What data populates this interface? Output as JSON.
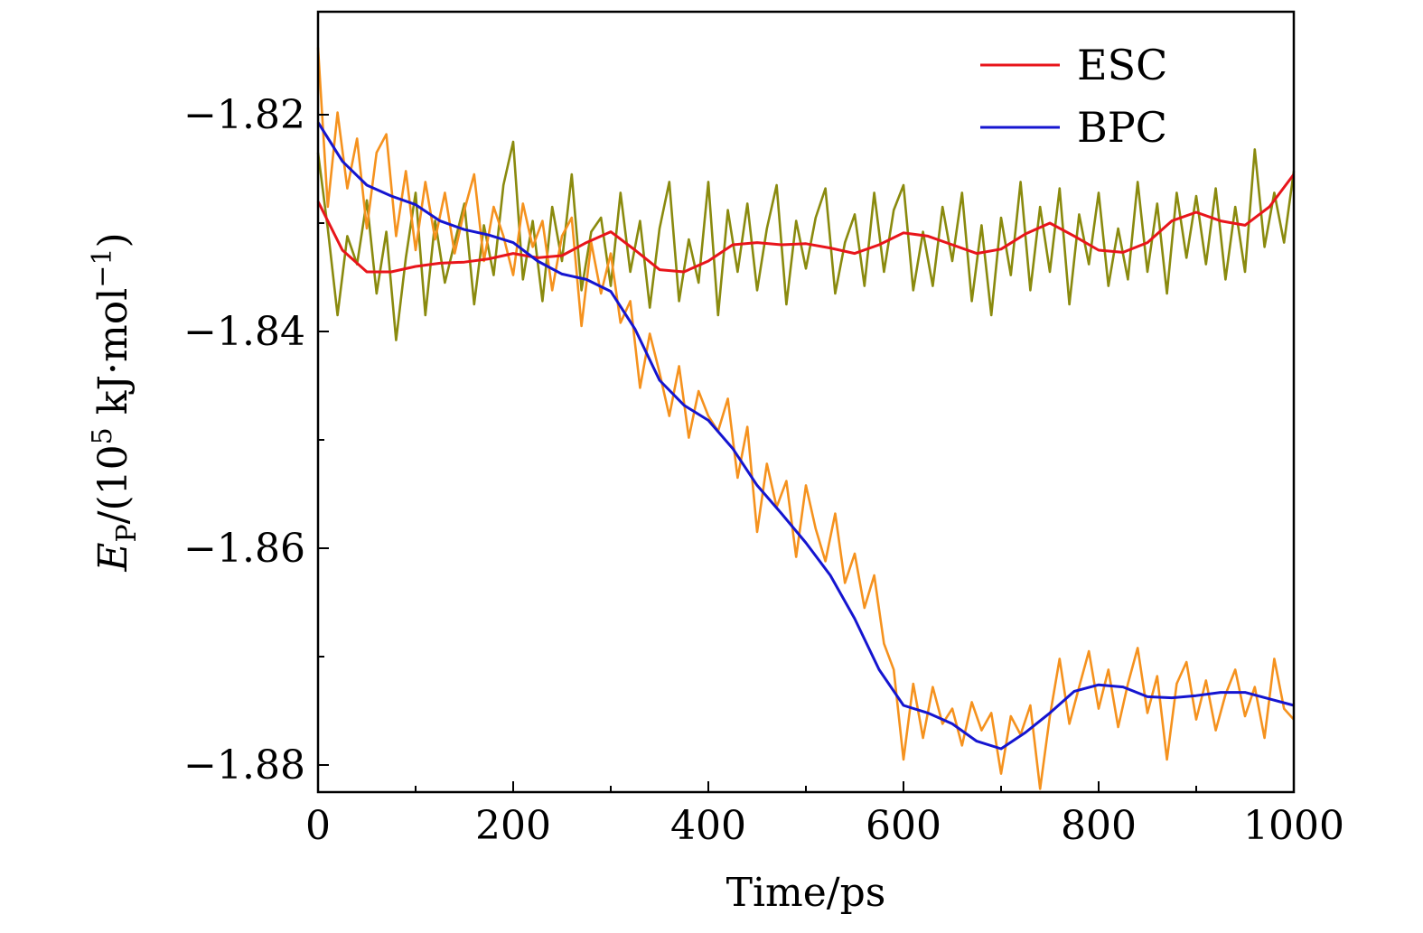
{
  "chart_data": {
    "type": "line",
    "title": "",
    "xlabel": "Time/ps",
    "ylabel": {
      "symbol": "E",
      "subscript": "P",
      "prefix": "/(10",
      "exponent": "5",
      "unit": " kJ·mol",
      "unit_exponent": "−1",
      "suffix": ")"
    },
    "xlim": [
      0,
      1000
    ],
    "ylim": [
      -1.8825,
      -1.8105
    ],
    "x_ticks": [
      0,
      200,
      400,
      600,
      800,
      1000
    ],
    "x_tick_labels": [
      "0",
      "200",
      "400",
      "600",
      "800",
      "1000"
    ],
    "y_ticks": [
      -1.82,
      -1.84,
      -1.86,
      -1.88
    ],
    "y_tick_labels": [
      "−1.82",
      "−1.84",
      "−1.86",
      "−1.88"
    ],
    "legend": {
      "position": "top-right",
      "entries": [
        {
          "label": "ESC",
          "color": "#e8151b"
        },
        {
          "label": "BPC",
          "color": "#1515d0"
        }
      ]
    },
    "series": [
      {
        "name": "ESC",
        "role": "smoothed",
        "color": "#e8151b",
        "x": [
          0,
          25,
          50,
          75,
          100,
          125,
          150,
          175,
          200,
          225,
          250,
          275,
          300,
          325,
          350,
          375,
          400,
          425,
          450,
          475,
          500,
          525,
          550,
          575,
          600,
          625,
          650,
          675,
          700,
          725,
          750,
          775,
          800,
          825,
          850,
          875,
          900,
          925,
          950,
          975,
          1000
        ],
        "values": [
          -1.828,
          -1.8325,
          -1.8345,
          -1.8345,
          -1.834,
          -1.8337,
          -1.8336,
          -1.8333,
          -1.8328,
          -1.8332,
          -1.833,
          -1.8318,
          -1.8308,
          -1.8325,
          -1.8343,
          -1.8345,
          -1.8335,
          -1.832,
          -1.8318,
          -1.832,
          -1.8319,
          -1.8323,
          -1.8328,
          -1.832,
          -1.8309,
          -1.8312,
          -1.832,
          -1.8328,
          -1.8324,
          -1.831,
          -1.83,
          -1.8312,
          -1.8325,
          -1.8327,
          -1.8318,
          -1.8298,
          -1.829,
          -1.8298,
          -1.8302,
          -1.8285,
          -1.8255
        ]
      },
      {
        "name": "BPC",
        "role": "smoothed",
        "color": "#1515d0",
        "x": [
          0,
          25,
          50,
          75,
          100,
          125,
          150,
          175,
          200,
          225,
          250,
          275,
          300,
          325,
          350,
          375,
          400,
          425,
          450,
          475,
          500,
          525,
          550,
          575,
          600,
          625,
          650,
          675,
          700,
          725,
          750,
          775,
          800,
          825,
          850,
          875,
          900,
          925,
          950,
          975,
          1000
        ],
        "values": [
          -1.8207,
          -1.8243,
          -1.8265,
          -1.8275,
          -1.8283,
          -1.8298,
          -1.8306,
          -1.8311,
          -1.8318,
          -1.8335,
          -1.8347,
          -1.8352,
          -1.8363,
          -1.8398,
          -1.8445,
          -1.8468,
          -1.8482,
          -1.8508,
          -1.8542,
          -1.8568,
          -1.8595,
          -1.8625,
          -1.8665,
          -1.8712,
          -1.8745,
          -1.8752,
          -1.8762,
          -1.8778,
          -1.8785,
          -1.877,
          -1.8752,
          -1.8732,
          -1.8726,
          -1.8728,
          -1.8737,
          -1.8738,
          -1.8736,
          -1.8733,
          -1.8733,
          -1.8739,
          -1.8745
        ]
      },
      {
        "name": "ESC raw",
        "role": "raw",
        "color": "#8a8a0e",
        "x": [
          0,
          10,
          20,
          30,
          40,
          50,
          60,
          70,
          80,
          90,
          100,
          110,
          120,
          130,
          140,
          150,
          160,
          170,
          180,
          190,
          200,
          210,
          220,
          230,
          240,
          250,
          260,
          270,
          280,
          290,
          300,
          310,
          320,
          330,
          340,
          350,
          360,
          370,
          380,
          390,
          400,
          410,
          420,
          430,
          440,
          450,
          460,
          470,
          480,
          490,
          500,
          510,
          520,
          530,
          540,
          550,
          560,
          570,
          580,
          590,
          600,
          610,
          620,
          630,
          640,
          650,
          660,
          670,
          680,
          690,
          700,
          710,
          720,
          730,
          740,
          750,
          760,
          770,
          780,
          790,
          800,
          810,
          820,
          830,
          840,
          850,
          860,
          870,
          880,
          890,
          900,
          910,
          920,
          930,
          940,
          950,
          960,
          970,
          980,
          990,
          1000
        ],
        "values": [
          -1.8235,
          -1.8305,
          -1.8385,
          -1.8312,
          -1.8338,
          -1.8279,
          -1.8365,
          -1.8308,
          -1.8408,
          -1.8332,
          -1.8272,
          -1.8385,
          -1.8298,
          -1.8355,
          -1.8318,
          -1.8282,
          -1.8375,
          -1.8302,
          -1.8348,
          -1.8265,
          -1.8225,
          -1.8352,
          -1.8298,
          -1.8372,
          -1.8285,
          -1.8335,
          -1.8255,
          -1.8362,
          -1.8308,
          -1.8295,
          -1.8358,
          -1.8272,
          -1.8345,
          -1.8298,
          -1.8378,
          -1.8305,
          -1.8262,
          -1.8372,
          -1.8315,
          -1.8355,
          -1.8262,
          -1.8385,
          -1.8288,
          -1.8345,
          -1.8282,
          -1.8362,
          -1.8305,
          -1.8265,
          -1.8375,
          -1.8298,
          -1.8342,
          -1.8295,
          -1.8268,
          -1.8365,
          -1.8318,
          -1.8292,
          -1.8358,
          -1.8272,
          -1.8345,
          -1.8288,
          -1.8265,
          -1.8362,
          -1.8308,
          -1.8358,
          -1.8285,
          -1.8335,
          -1.8272,
          -1.8372,
          -1.8302,
          -1.8385,
          -1.8295,
          -1.8348,
          -1.8262,
          -1.8362,
          -1.8285,
          -1.8345,
          -1.8268,
          -1.8375,
          -1.8292,
          -1.8338,
          -1.8272,
          -1.8358,
          -1.8305,
          -1.8352,
          -1.8262,
          -1.8345,
          -1.8282,
          -1.8365,
          -1.8272,
          -1.8332,
          -1.8275,
          -1.8338,
          -1.8268,
          -1.8352,
          -1.8285,
          -1.8345,
          -1.8232,
          -1.8322,
          -1.8272,
          -1.8318,
          -1.8252
        ]
      },
      {
        "name": "BPC raw",
        "role": "raw",
        "color": "#f5921e",
        "x": [
          0,
          10,
          20,
          30,
          40,
          50,
          60,
          70,
          80,
          90,
          100,
          110,
          120,
          130,
          140,
          150,
          160,
          170,
          180,
          190,
          200,
          210,
          220,
          230,
          240,
          250,
          260,
          270,
          280,
          290,
          300,
          310,
          320,
          330,
          340,
          350,
          360,
          370,
          380,
          390,
          400,
          410,
          420,
          430,
          440,
          450,
          460,
          470,
          480,
          490,
          500,
          510,
          520,
          530,
          540,
          550,
          560,
          570,
          580,
          590,
          600,
          610,
          620,
          630,
          640,
          650,
          660,
          670,
          680,
          690,
          700,
          710,
          720,
          730,
          740,
          750,
          760,
          770,
          780,
          790,
          800,
          810,
          820,
          830,
          840,
          850,
          860,
          870,
          880,
          890,
          900,
          910,
          920,
          930,
          940,
          950,
          960,
          970,
          980,
          990,
          1000
        ],
        "values": [
          -1.8138,
          -1.8285,
          -1.8198,
          -1.8268,
          -1.8222,
          -1.8305,
          -1.8235,
          -1.8218,
          -1.8312,
          -1.8252,
          -1.8325,
          -1.8262,
          -1.8315,
          -1.8272,
          -1.8328,
          -1.8288,
          -1.8255,
          -1.8335,
          -1.8285,
          -1.8312,
          -1.8348,
          -1.8282,
          -1.8322,
          -1.8298,
          -1.8362,
          -1.8312,
          -1.8295,
          -1.8395,
          -1.8318,
          -1.8365,
          -1.8328,
          -1.8392,
          -1.8372,
          -1.8452,
          -1.8402,
          -1.8438,
          -1.8478,
          -1.8432,
          -1.8498,
          -1.8455,
          -1.8478,
          -1.8492,
          -1.8462,
          -1.8535,
          -1.8488,
          -1.8585,
          -1.8522,
          -1.8562,
          -1.8538,
          -1.8608,
          -1.8542,
          -1.8582,
          -1.8612,
          -1.8568,
          -1.8632,
          -1.8605,
          -1.8655,
          -1.8625,
          -1.8688,
          -1.8712,
          -1.8795,
          -1.8725,
          -1.8775,
          -1.8728,
          -1.8762,
          -1.8748,
          -1.8782,
          -1.8742,
          -1.8768,
          -1.8752,
          -1.8808,
          -1.8755,
          -1.8772,
          -1.8745,
          -1.8822,
          -1.8755,
          -1.8702,
          -1.8762,
          -1.8728,
          -1.8695,
          -1.8748,
          -1.8712,
          -1.8765,
          -1.8725,
          -1.8692,
          -1.8752,
          -1.8718,
          -1.8795,
          -1.8725,
          -1.8705,
          -1.8758,
          -1.8722,
          -1.8768,
          -1.8735,
          -1.8712,
          -1.8755,
          -1.8728,
          -1.8775,
          -1.8702,
          -1.8748,
          -1.8758
        ]
      }
    ]
  }
}
